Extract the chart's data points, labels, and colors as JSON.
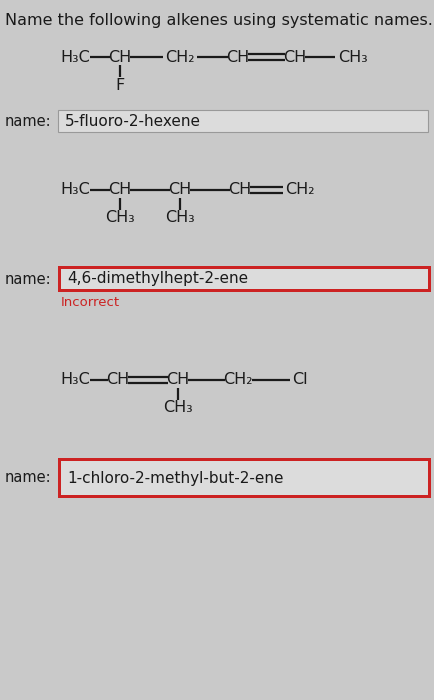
{
  "title": "Name the following alkenes using systematic names.",
  "bg_color": "#c8c8c8",
  "top_bg": "#e8e8e8",
  "text_color": "#1a1a1a",
  "bond_color": "#1a1a1a",
  "name_label": "name:",
  "molecule1": {
    "name": "5-fluoro-2-hexene"
  },
  "molecule2": {
    "name": "4,6-dimethylhept-2-ene",
    "incorrect": true,
    "incorrect_text": "Incorrect",
    "incorrect_color": "#cc2222"
  },
  "molecule3": {
    "name": "1-chloro-2-methyl-but-2-ene"
  },
  "fs_mol": 11.5,
  "fs_label": 10.5,
  "fs_name": 11.0,
  "fs_title": 11.5,
  "fs_incorrect": 9.5
}
